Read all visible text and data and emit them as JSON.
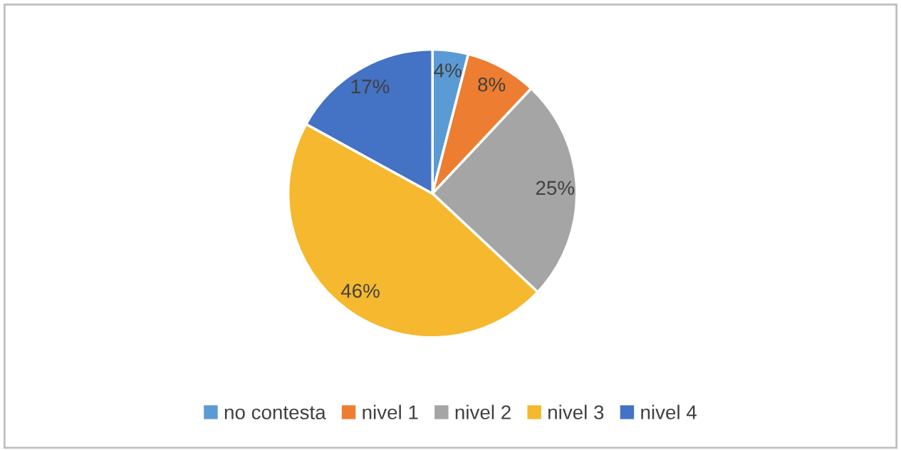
{
  "chart_data": {
    "type": "pie",
    "categories": [
      "no contesta",
      "nivel 1",
      "nivel 2",
      "nivel 3",
      "nivel 4"
    ],
    "values": [
      4,
      8,
      25,
      46,
      17
    ],
    "colors": [
      "#5b9bd5",
      "#ed7d31",
      "#a5a5a5",
      "#f5b82e",
      "#4472c4"
    ],
    "value_labels": [
      "4%",
      "8%",
      "25%",
      "46%",
      "17%"
    ],
    "legend": "bottom"
  }
}
